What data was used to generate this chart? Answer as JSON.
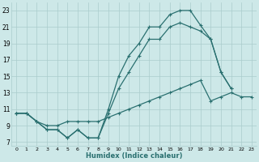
{
  "background_color": "#cde8e8",
  "grid_color": "#aacccc",
  "line_color": "#2a7070",
  "xlabel": "Humidex (Indice chaleur)",
  "xlim": [
    -0.5,
    23.5
  ],
  "ylim": [
    6.5,
    24.0
  ],
  "xticks": [
    0,
    1,
    2,
    3,
    4,
    5,
    6,
    7,
    8,
    9,
    10,
    11,
    12,
    13,
    14,
    15,
    16,
    17,
    18,
    19,
    20,
    21,
    22,
    23
  ],
  "yticks": [
    7,
    9,
    11,
    13,
    15,
    17,
    19,
    21,
    23
  ],
  "curve1_x": [
    0,
    1,
    2,
    3,
    4,
    5,
    6,
    7,
    8,
    9,
    10,
    11,
    12,
    13,
    14,
    15,
    16,
    17,
    18,
    19,
    20,
    21
  ],
  "curve1_y": [
    10.5,
    10.5,
    9.5,
    8.5,
    8.5,
    7.5,
    8.5,
    7.5,
    7.5,
    11.0,
    15.0,
    17.5,
    19.0,
    21.0,
    21.0,
    22.5,
    23.0,
    23.0,
    21.2,
    19.5,
    15.5,
    13.5
  ],
  "curve2_x": [
    0,
    1,
    2,
    3,
    4,
    5,
    6,
    7,
    8,
    9,
    10,
    11,
    12,
    13,
    14,
    15,
    16,
    17,
    18,
    19,
    20,
    21
  ],
  "curve2_y": [
    10.5,
    10.5,
    9.5,
    8.5,
    8.5,
    7.5,
    8.5,
    7.5,
    7.5,
    10.5,
    13.5,
    15.5,
    17.5,
    19.5,
    19.5,
    21.0,
    21.5,
    21.0,
    20.5,
    19.5,
    15.5,
    13.5
  ],
  "curve3_x": [
    0,
    1,
    2,
    3,
    4,
    5,
    6,
    7,
    8,
    9,
    10,
    11,
    12,
    13,
    14,
    15,
    16,
    17,
    18,
    19,
    20,
    21,
    22,
    23
  ],
  "curve3_y": [
    10.5,
    10.5,
    9.5,
    9.0,
    9.0,
    9.5,
    9.5,
    9.5,
    9.5,
    10.0,
    10.5,
    11.0,
    11.5,
    12.0,
    12.5,
    13.0,
    13.5,
    14.0,
    14.5,
    12.0,
    12.5,
    13.0,
    12.5,
    12.5
  ]
}
